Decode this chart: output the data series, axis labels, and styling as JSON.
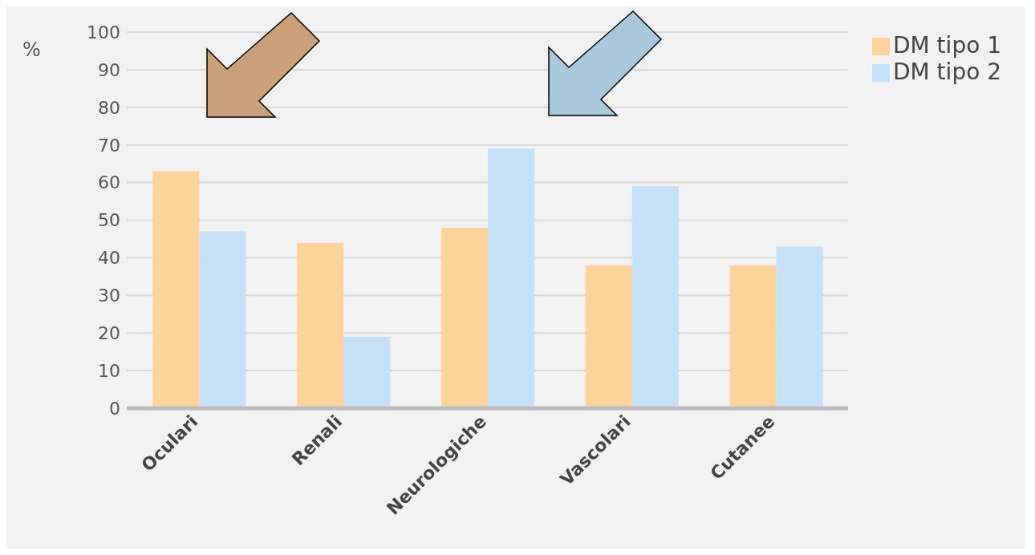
{
  "chart_data": {
    "type": "bar",
    "ylabel": "%",
    "categories": [
      "Oculari",
      "Renali",
      "Neurologiche",
      "Vascolari",
      "Cutanee"
    ],
    "series": [
      {
        "name": "DM tipo 1",
        "color": "#fdd39c",
        "values": [
          63,
          44,
          48,
          38,
          38
        ]
      },
      {
        "name": "DM tipo 2",
        "color": "#c6e0f7",
        "values": [
          47,
          19,
          69,
          59,
          43
        ]
      }
    ],
    "ylim": [
      0,
      100
    ],
    "yticks": [
      0,
      10,
      20,
      30,
      40,
      50,
      60,
      70,
      80,
      90,
      100
    ],
    "grid": "y",
    "legend": "top right"
  }
}
